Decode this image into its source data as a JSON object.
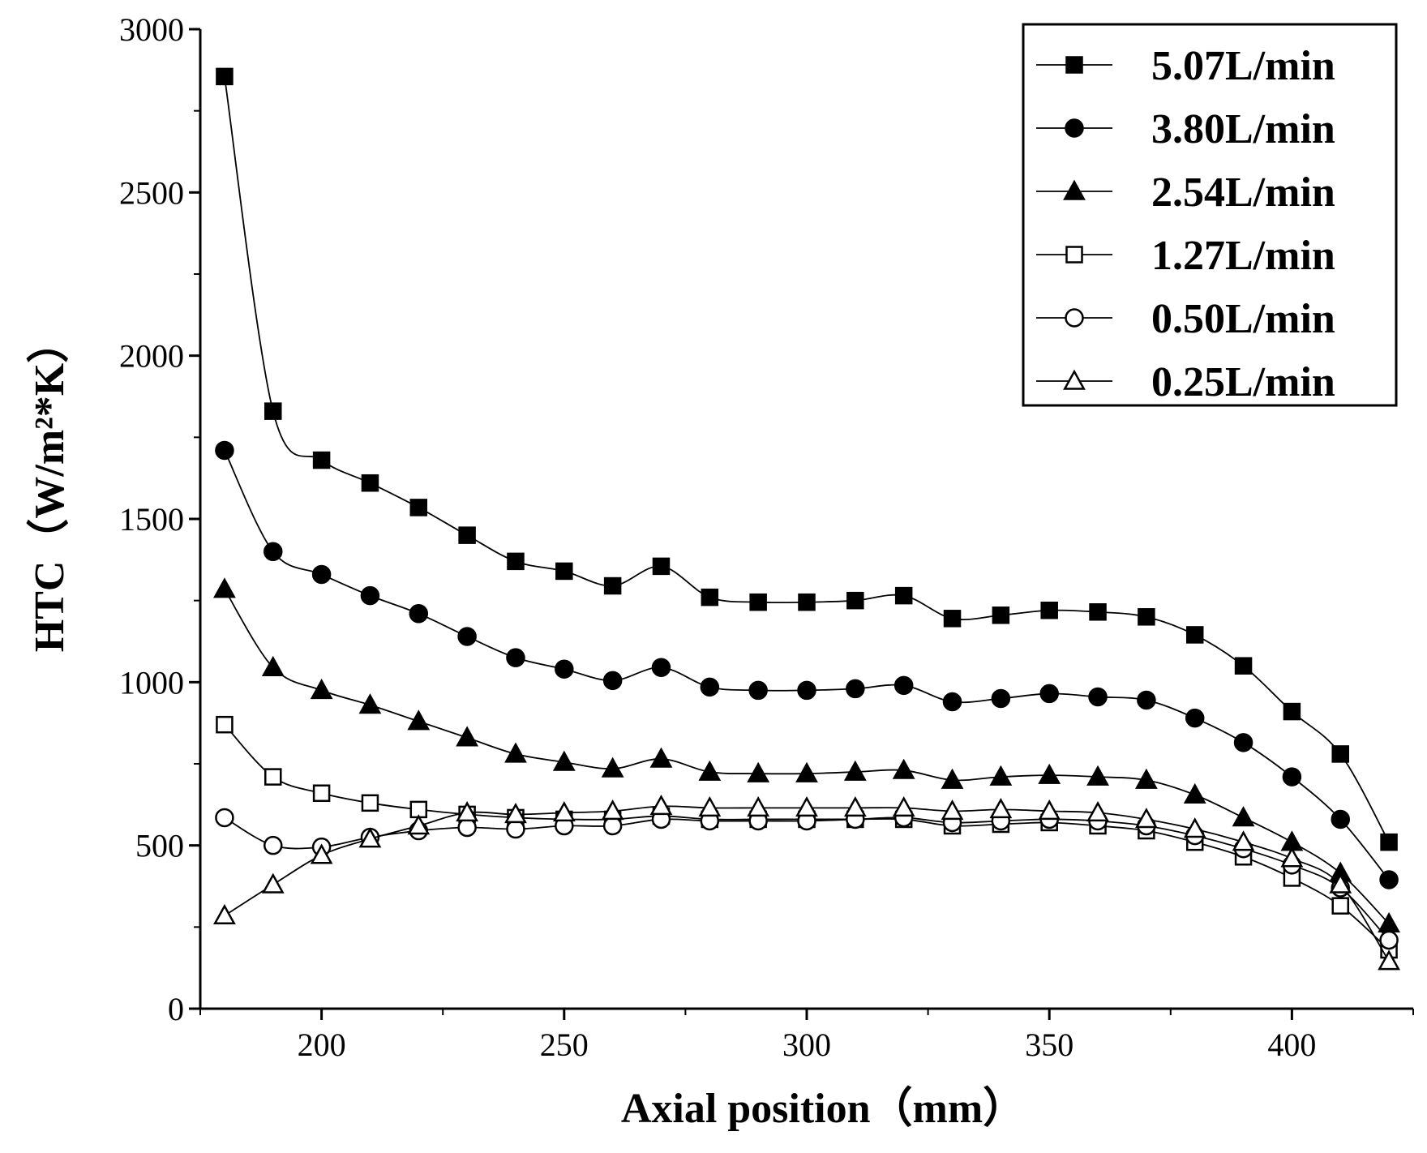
{
  "chart_data": {
    "type": "line",
    "xlabel": "Axial position（mm）",
    "ylabel": "HTC（W/m²*K）",
    "xlim": [
      175,
      425
    ],
    "ylim": [
      0,
      3000
    ],
    "xticks": [
      200,
      250,
      300,
      350,
      400
    ],
    "yticks": [
      0,
      500,
      1000,
      1500,
      2000,
      2500,
      3000
    ],
    "legend_position": "top-right",
    "x": [
      180,
      190,
      200,
      210,
      220,
      230,
      240,
      250,
      260,
      270,
      280,
      290,
      300,
      310,
      320,
      330,
      340,
      350,
      360,
      370,
      380,
      390,
      400,
      410,
      420
    ],
    "series": [
      {
        "name": "5.07L/min",
        "marker": "square-filled",
        "values": [
          2855,
          1830,
          1680,
          1610,
          1535,
          1450,
          1370,
          1340,
          1295,
          1355,
          1260,
          1245,
          1245,
          1250,
          1265,
          1195,
          1205,
          1220,
          1215,
          1200,
          1145,
          1050,
          910,
          780,
          510
        ]
      },
      {
        "name": "3.80L/min",
        "marker": "circle-filled",
        "values": [
          1710,
          1400,
          1330,
          1265,
          1210,
          1140,
          1075,
          1040,
          1005,
          1045,
          985,
          975,
          975,
          980,
          990,
          940,
          950,
          965,
          955,
          945,
          890,
          815,
          710,
          580,
          395
        ]
      },
      {
        "name": "2.54L/min",
        "marker": "triangle-filled",
        "values": [
          1285,
          1045,
          975,
          930,
          880,
          830,
          780,
          755,
          735,
          765,
          725,
          720,
          720,
          725,
          730,
          700,
          710,
          715,
          710,
          700,
          655,
          585,
          510,
          415,
          260
        ]
      },
      {
        "name": "1.27L/min",
        "marker": "square-open",
        "values": [
          870,
          710,
          660,
          630,
          610,
          595,
          585,
          580,
          580,
          590,
          580,
          580,
          580,
          580,
          580,
          560,
          565,
          570,
          560,
          545,
          510,
          465,
          400,
          315,
          180
        ]
      },
      {
        "name": "0.50L/min",
        "marker": "circle-open",
        "values": [
          585,
          500,
          495,
          525,
          545,
          555,
          550,
          560,
          560,
          580,
          575,
          575,
          575,
          580,
          585,
          570,
          575,
          580,
          575,
          560,
          530,
          490,
          440,
          370,
          210
        ]
      },
      {
        "name": "0.25L/min",
        "marker": "triangle-open",
        "values": [
          285,
          380,
          470,
          520,
          560,
          600,
          595,
          600,
          605,
          620,
          615,
          615,
          615,
          615,
          615,
          605,
          610,
          605,
          600,
          580,
          550,
          510,
          460,
          380,
          145
        ]
      }
    ]
  }
}
